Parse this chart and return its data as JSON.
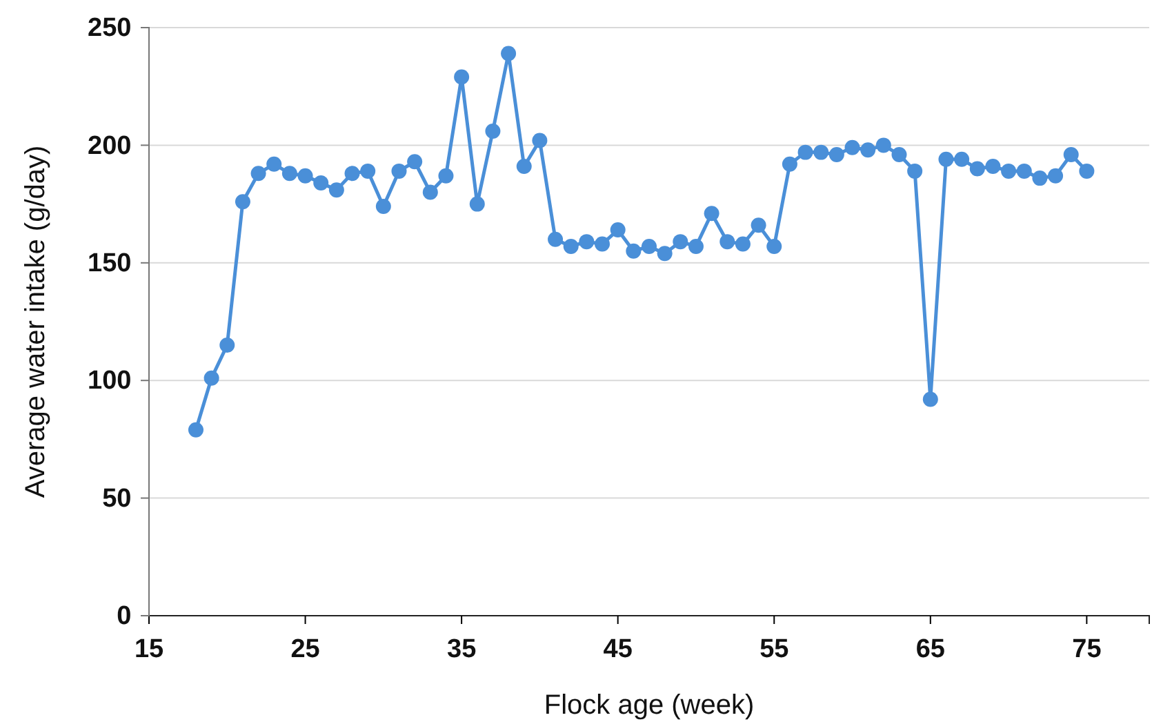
{
  "chart_data": {
    "type": "line",
    "xlabel": "Flock age (week)",
    "ylabel": "Average water intake (g/day)",
    "x": [
      18,
      19,
      20,
      21,
      22,
      23,
      24,
      25,
      26,
      27,
      28,
      29,
      30,
      31,
      32,
      33,
      34,
      35,
      36,
      37,
      38,
      39,
      40,
      41,
      42,
      43,
      44,
      45,
      46,
      47,
      48,
      49,
      50,
      51,
      52,
      53,
      54,
      55,
      56,
      57,
      58,
      59,
      60,
      61,
      62,
      63,
      64,
      65,
      66,
      67,
      68,
      69,
      70,
      71,
      72,
      73,
      74,
      75
    ],
    "series": [
      {
        "color": "#4a8fd8",
        "values": [
          79,
          101,
          115,
          176,
          188,
          192,
          188,
          187,
          184,
          181,
          188,
          189,
          174,
          189,
          193,
          180,
          187,
          229,
          175,
          206,
          239,
          191,
          202,
          160,
          157,
          159,
          158,
          164,
          155,
          157,
          154,
          159,
          157,
          171,
          159,
          158,
          166,
          157,
          192,
          197,
          197,
          196,
          199,
          198,
          200,
          196,
          189,
          92,
          194,
          194,
          190,
          191,
          189,
          189,
          186,
          187,
          196,
          189
        ]
      }
    ],
    "xlim": [
      15,
      79
    ],
    "xticks": [
      15,
      25,
      35,
      45,
      55,
      65,
      75
    ],
    "ylim": [
      0,
      250
    ],
    "yticks": [
      0,
      50,
      100,
      150,
      200,
      250
    ],
    "grid": "y",
    "marker": "circle",
    "line_style": "solid"
  }
}
